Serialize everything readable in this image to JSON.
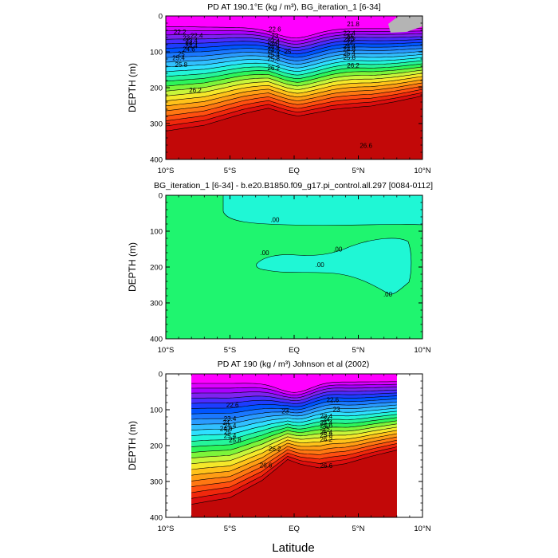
{
  "xlabel": "Latitude",
  "chart_data": [
    {
      "type": "heatmap",
      "title": "PD AT 190.1°E (kg / m³), BG_iteration_1 [6-34]",
      "ylabel": "DEPTH (m)",
      "xlim": [
        -10,
        10
      ],
      "ylim": [
        400,
        0
      ],
      "x_tick_labels": [
        "10°S",
        "5°S",
        "EQ",
        "5°N",
        "10°N"
      ],
      "y_tick_labels": [
        "0",
        "100",
        "200",
        "300",
        "400"
      ],
      "contour_levels": [
        22.2,
        22.4,
        22.6,
        22.8,
        23,
        23.2,
        23.4,
        23.6,
        23.8,
        24,
        24.2,
        24.4,
        24.6,
        24.8,
        25,
        25.2,
        25.4,
        25.6,
        25.8,
        26,
        26.2,
        26.4,
        26.6
      ],
      "contour_labels": [
        {
          "text": "22.6",
          "x": -1.5,
          "y": 37
        },
        {
          "text": "21.8",
          "x": 4.6,
          "y": 22
        },
        {
          "text": "22.2",
          "x": -8.9,
          "y": 44
        },
        {
          "text": "22.4",
          "x": -7.6,
          "y": 54
        },
        {
          "text": "23",
          "x": -8.4,
          "y": 61
        },
        {
          "text": "23",
          "x": -1.5,
          "y": 56
        },
        {
          "text": "23",
          "x": 4.4,
          "y": 62
        },
        {
          "text": "23.4",
          "x": -8.0,
          "y": 69
        },
        {
          "text": "24",
          "x": -8.2,
          "y": 76
        },
        {
          "text": "24.4",
          "x": -8.0,
          "y": 83
        },
        {
          "text": "24.6",
          "x": -8.2,
          "y": 92
        },
        {
          "text": "23.4",
          "x": -1.6,
          "y": 70
        },
        {
          "text": "24",
          "x": -1.6,
          "y": 78
        },
        {
          "text": "24.4",
          "x": -1.6,
          "y": 86
        },
        {
          "text": "24.6",
          "x": -1.6,
          "y": 94
        },
        {
          "text": "25",
          "x": -0.5,
          "y": 99
        },
        {
          "text": "22.4",
          "x": 4.3,
          "y": 48
        },
        {
          "text": "23",
          "x": 4.3,
          "y": 57
        },
        {
          "text": "23.2",
          "x": 4.3,
          "y": 66
        },
        {
          "text": "24",
          "x": 4.3,
          "y": 75
        },
        {
          "text": "24.4",
          "x": 4.3,
          "y": 84
        },
        {
          "text": "24.8",
          "x": 4.3,
          "y": 92
        },
        {
          "text": "25",
          "x": -8.8,
          "y": 106
        },
        {
          "text": "25.4",
          "x": -1.6,
          "y": 107
        },
        {
          "text": "25.4",
          "x": 4.3,
          "y": 103
        },
        {
          "text": "25.4",
          "x": -9.0,
          "y": 117
        },
        {
          "text": "25.8",
          "x": -1.6,
          "y": 119
        },
        {
          "text": "25.8",
          "x": 4.3,
          "y": 116
        },
        {
          "text": "25.8",
          "x": -8.8,
          "y": 136
        },
        {
          "text": "26.2",
          "x": -1.6,
          "y": 144
        },
        {
          "text": "26.2",
          "x": 4.6,
          "y": 138
        },
        {
          "text": "26.2",
          "x": -7.7,
          "y": 207
        },
        {
          "text": "26.6",
          "x": 5.6,
          "y": 361
        }
      ]
    },
    {
      "type": "heatmap",
      "title": "BG_iteration_1 [6-34] - b.e20.B1850.f09_g17.pi_control.all.297 [0084-0112]",
      "ylabel": "DEPTH (m)",
      "xlim": [
        -10,
        10
      ],
      "ylim": [
        400,
        0
      ],
      "x_tick_labels": [
        "10°S",
        "5°S",
        "EQ",
        "5°N",
        "10°N"
      ],
      "y_tick_labels": [
        "0",
        "100",
        "200",
        "300",
        "400"
      ],
      "contour_labels": [
        {
          "text": ".00",
          "x": -1.5,
          "y": 68
        },
        {
          "text": ".00",
          "x": -2.3,
          "y": 160
        },
        {
          "text": ".00",
          "x": 3.4,
          "y": 150
        },
        {
          "text": ".00",
          "x": 2.0,
          "y": 193
        },
        {
          "text": ".00",
          "x": 7.3,
          "y": 276
        }
      ]
    },
    {
      "type": "heatmap",
      "title": "PD AT 190 (kg / m³) Johnson et al (2002)",
      "ylabel": "DEPTH (m)",
      "xlim": [
        -10,
        10
      ],
      "ylim": [
        400,
        0
      ],
      "data_xlim": [
        -8,
        8
      ],
      "x_tick_labels": [
        "10°S",
        "5°S",
        "EQ",
        "5°N",
        "10°N"
      ],
      "y_tick_labels": [
        "0",
        "100",
        "200",
        "300",
        "400"
      ],
      "contour_labels": [
        {
          "text": "22.6",
          "x": -4.8,
          "y": 87
        },
        {
          "text": "22.6",
          "x": 3.0,
          "y": 72
        },
        {
          "text": "23",
          "x": -0.7,
          "y": 103
        },
        {
          "text": "23",
          "x": 3.3,
          "y": 99
        },
        {
          "text": "23.4",
          "x": -5.0,
          "y": 124
        },
        {
          "text": "24",
          "x": -5.3,
          "y": 136
        },
        {
          "text": "24.4",
          "x": -5.0,
          "y": 144
        },
        {
          "text": "24.6",
          "x": -5.3,
          "y": 152
        },
        {
          "text": "25",
          "x": -5.2,
          "y": 162
        },
        {
          "text": "25.4",
          "x": -5.0,
          "y": 172
        },
        {
          "text": "25.8",
          "x": -4.6,
          "y": 184
        },
        {
          "text": "26.2",
          "x": -1.5,
          "y": 209
        },
        {
          "text": "23.4",
          "x": 2.5,
          "y": 118
        },
        {
          "text": "24",
          "x": 2.5,
          "y": 127
        },
        {
          "text": "24.4",
          "x": 2.5,
          "y": 135
        },
        {
          "text": "24.6",
          "x": 2.5,
          "y": 143
        },
        {
          "text": "25",
          "x": 2.5,
          "y": 152
        },
        {
          "text": "25.4",
          "x": 2.5,
          "y": 162
        },
        {
          "text": "25.8",
          "x": 2.5,
          "y": 170
        },
        {
          "text": "26.2",
          "x": 2.5,
          "y": 182
        },
        {
          "text": "26.6",
          "x": -2.2,
          "y": 254
        },
        {
          "text": "26.6",
          "x": 2.5,
          "y": 255
        }
      ]
    }
  ]
}
